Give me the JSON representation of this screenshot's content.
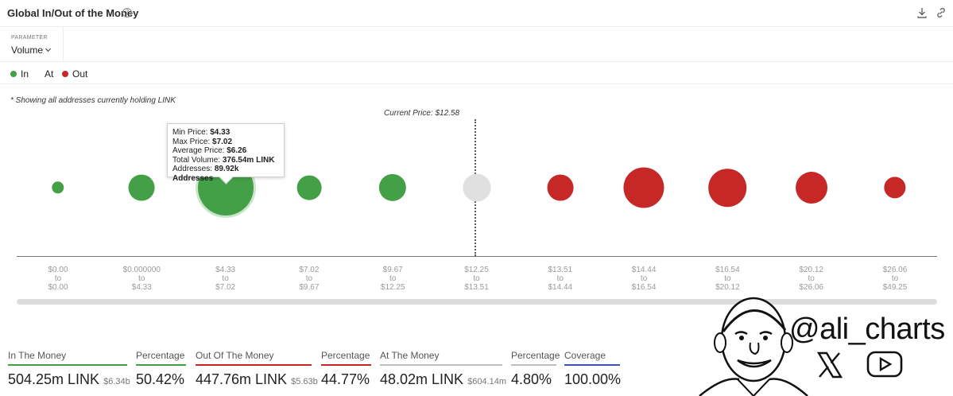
{
  "header": {
    "title": "Global In/Out of the Money",
    "help_icon": "question-circle-icon",
    "download_icon": "download-icon",
    "link_icon": "link-icon"
  },
  "parameter": {
    "label": "PARAMETER",
    "value": "Volume"
  },
  "legend": [
    {
      "label": "In",
      "color": "#43a047"
    },
    {
      "label": "At",
      "color": "#e0e0e0"
    },
    {
      "label": "Out",
      "color": "#c62828"
    }
  ],
  "note": "* Showing all addresses currently holding LINK",
  "current_price_label": "Current Price: $12.58",
  "tooltip": {
    "min_label": "Min Price:",
    "min_value": "$4.33",
    "max_label": "Max Price:",
    "max_value": "$7.02",
    "avg_label": "Average Price:",
    "avg_value": "$6.26",
    "vol_label": "Total Volume:",
    "vol_value": "376.54m LINK",
    "addr_label": "Addresses:",
    "addr_value": "89.92k Addresses"
  },
  "chart_data": {
    "type": "scatter",
    "title": "",
    "categories": [
      {
        "from": "$0.00",
        "to": "$0.00",
        "status": "in"
      },
      {
        "from": "$0.000000",
        "to": "$4.33",
        "status": "in"
      },
      {
        "from": "$4.33",
        "to": "$7.02",
        "status": "in"
      },
      {
        "from": "$7.02",
        "to": "$9.67",
        "status": "in"
      },
      {
        "from": "$9.67",
        "to": "$12.25",
        "status": "in"
      },
      {
        "from": "$12.25",
        "to": "$13.51",
        "status": "at"
      },
      {
        "from": "$13.51",
        "to": "$14.44",
        "status": "out"
      },
      {
        "from": "$14.44",
        "to": "$16.54",
        "status": "out"
      },
      {
        "from": "$16.54",
        "to": "$20.12",
        "status": "out"
      },
      {
        "from": "$20.12",
        "to": "$26.06",
        "status": "out"
      },
      {
        "from": "$26.06",
        "to": "$49.25",
        "status": "out"
      }
    ],
    "to_word": "to",
    "relative_volume": [
      0.22,
      0.47,
      1.0,
      0.44,
      0.49,
      0.5,
      0.47,
      0.73,
      0.68,
      0.57,
      0.39
    ],
    "highlighted_index": 2,
    "current_price": 12.58,
    "colors": {
      "in": "#43a047",
      "at": "#e0e0e0",
      "out": "#c62828"
    }
  },
  "stats": [
    {
      "label": "In The Money",
      "value": "504.25m LINK",
      "sub": "$6.34b",
      "bar_color": "#43a047"
    },
    {
      "label": "Percentage",
      "value": "50.42%",
      "sub": "",
      "bar_color": "#43a047"
    },
    {
      "label": "Out Of The Money",
      "value": "447.76m LINK",
      "sub": "$5.63b",
      "bar_color": "#c62828"
    },
    {
      "label": "Percentage",
      "value": "44.77%",
      "sub": "",
      "bar_color": "#c62828"
    },
    {
      "label": "At The Money",
      "value": "48.02m LINK",
      "sub": "$604.14m",
      "bar_color": "#bdbdbd"
    },
    {
      "label": "Percentage",
      "value": "4.80%",
      "sub": "",
      "bar_color": "#bdbdbd"
    },
    {
      "label": "Coverage",
      "value": "100.00%",
      "sub": "",
      "bar_color": "#3f51b5"
    }
  ],
  "branding": {
    "handle": "@ali_charts",
    "x_icon": "x-logo-icon",
    "youtube_icon": "youtube-play-icon"
  }
}
